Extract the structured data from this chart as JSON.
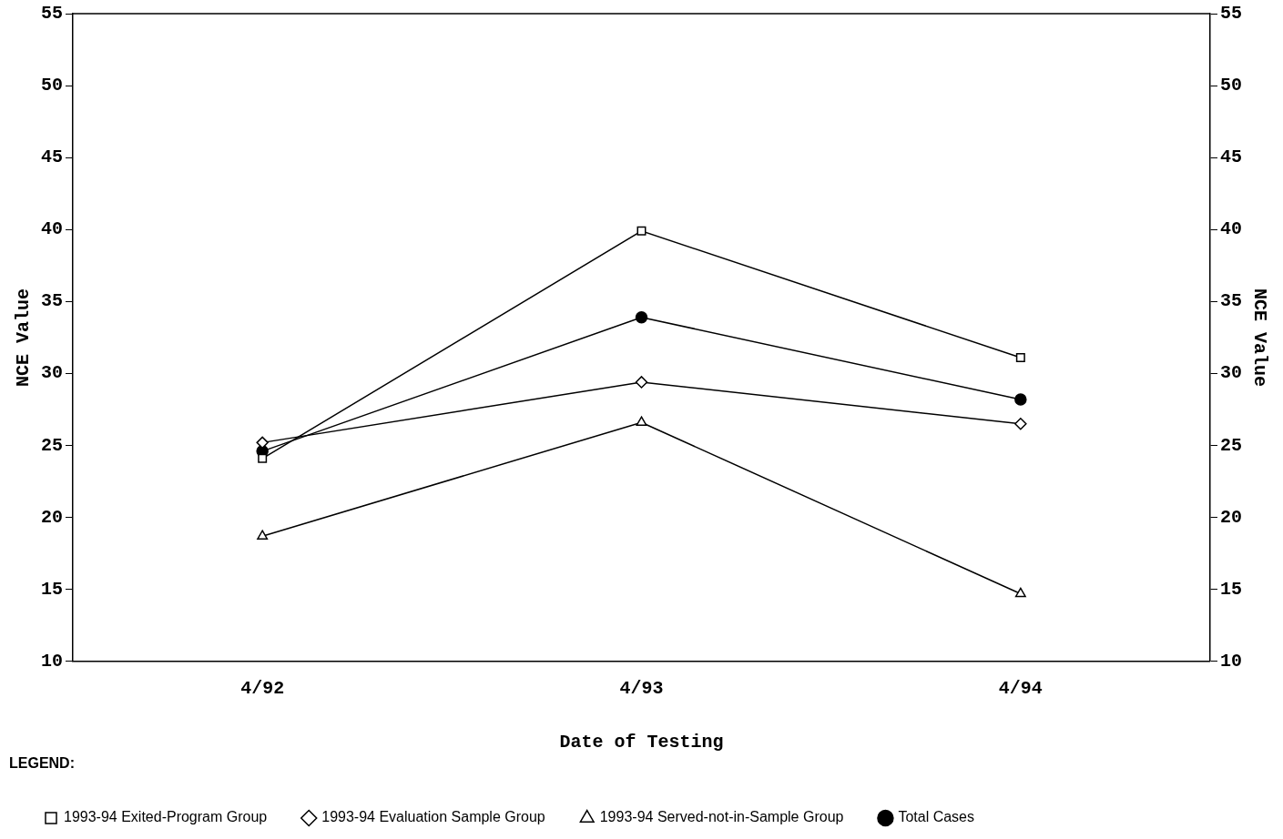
{
  "chart_data": {
    "type": "line",
    "categories": [
      "4/92",
      "4/93",
      "4/94"
    ],
    "xlabel": "Date of Testing",
    "ylabel": "NCE Value",
    "y2label": "NCE Value",
    "ylim": [
      10,
      55
    ],
    "yticks": [
      10,
      15,
      20,
      25,
      30,
      35,
      40,
      45,
      50,
      55
    ],
    "y2lim": [
      10,
      55
    ],
    "y2ticks": [
      10,
      15,
      20,
      25,
      30,
      35,
      40,
      45,
      50,
      55
    ],
    "grid": false,
    "legend": "bottom",
    "legend_title": "LEGEND:",
    "line_style": "solid",
    "series": [
      {
        "name": "1993-94 Exited-Program Group",
        "color": "#000000",
        "marker": "square",
        "values": [
          24.1,
          39.9,
          31.1
        ]
      },
      {
        "name": "1993-94 Evaluation Sample Group",
        "color": "#000000",
        "marker": "diamond",
        "values": [
          25.2,
          29.4,
          26.5
        ]
      },
      {
        "name": "1993-94 Served-not-in-Sample Group",
        "color": "#000000",
        "marker": "triangle",
        "values": [
          18.7,
          26.6,
          14.7
        ]
      },
      {
        "name": "Total Cases",
        "color": "#000000",
        "marker": "circle",
        "values": [
          24.6,
          33.9,
          28.2
        ]
      }
    ]
  }
}
